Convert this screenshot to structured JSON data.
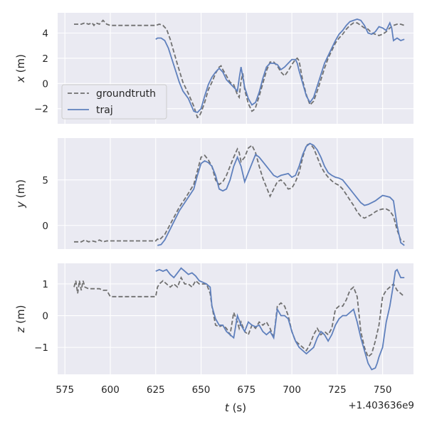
{
  "chart_data": [
    {
      "type": "line",
      "ylabel_var": "x",
      "ylabel_unit": " (m)",
      "xlim": [
        571,
        767
      ],
      "ylim": [
        -3.2,
        5.6
      ],
      "yticks": [
        -2,
        0,
        2,
        4
      ],
      "ytick_labels": [
        "−2",
        "0",
        "2",
        "4"
      ],
      "xticks": [
        575,
        600,
        625,
        650,
        675,
        700,
        725,
        750
      ],
      "legend": {
        "placement": "center-left",
        "entries": [
          "groundtruth",
          "traj"
        ]
      },
      "series": [
        {
          "name": "groundtruth",
          "style": "dashed",
          "color": "#707070",
          "x": [
            580,
            584,
            586,
            588,
            590,
            591,
            592,
            594,
            596,
            598,
            600,
            610,
            620,
            625,
            627,
            629,
            631,
            633,
            635,
            637,
            640,
            643,
            646,
            648,
            649,
            650,
            652,
            654,
            656,
            658,
            660,
            661,
            662,
            664,
            666,
            668,
            670,
            671,
            672,
            673,
            674,
            676,
            678,
            679,
            680,
            682,
            684,
            686,
            688,
            690,
            692,
            694,
            696,
            698,
            700,
            702,
            703,
            704,
            706,
            708,
            710,
            712,
            714,
            716,
            718,
            720,
            722,
            724,
            726,
            728,
            730,
            732,
            734,
            736,
            738,
            740,
            742,
            744,
            746,
            748,
            750,
            752,
            754,
            756,
            758,
            760,
            762
          ],
          "values": [
            4.7,
            4.7,
            4.8,
            4.7,
            4.8,
            4.6,
            4.8,
            4.7,
            5.0,
            4.7,
            4.6,
            4.6,
            4.6,
            4.6,
            4.7,
            4.6,
            4.3,
            3.5,
            2.5,
            1.5,
            0.1,
            -0.8,
            -1.8,
            -2.7,
            -2.6,
            -2.3,
            -1.5,
            -0.5,
            0.1,
            0.8,
            1.3,
            1.4,
            1.1,
            0.6,
            0.1,
            -0.1,
            -0.9,
            -1.1,
            0.2,
            0.8,
            -0.5,
            -1.6,
            -2.2,
            -2.1,
            -1.9,
            -1.0,
            0.0,
            1.0,
            1.7,
            1.7,
            1.4,
            0.9,
            0.6,
            1.0,
            1.5,
            1.9,
            2.0,
            1.8,
            0.2,
            -0.9,
            -1.7,
            -1.4,
            -0.6,
            0.3,
            1.2,
            2.0,
            2.6,
            3.2,
            3.6,
            3.9,
            4.3,
            4.6,
            4.8,
            4.8,
            4.6,
            4.4,
            4.3,
            4.0,
            3.9,
            3.8,
            3.9,
            4.1,
            4.4,
            4.6,
            4.7,
            4.7,
            4.6
          ]
        },
        {
          "name": "traj",
          "style": "solid",
          "color": "#5f80bd",
          "x": [
            625,
            626,
            628,
            630,
            632,
            634,
            636,
            638,
            640,
            643,
            646,
            648,
            650,
            652,
            654,
            656,
            658,
            660,
            662,
            664,
            666,
            668,
            670,
            671,
            672,
            673,
            674,
            676,
            678,
            680,
            682,
            684,
            686,
            688,
            690,
            692,
            694,
            696,
            698,
            700,
            702,
            703,
            704,
            706,
            708,
            710,
            712,
            714,
            716,
            718,
            720,
            722,
            724,
            726,
            728,
            730,
            732,
            734,
            736,
            738,
            740,
            742,
            744,
            746,
            748,
            750,
            752,
            754,
            755,
            756,
            758,
            760,
            762
          ],
          "values": [
            3.5,
            3.6,
            3.6,
            3.4,
            2.8,
            1.9,
            1.0,
            0.1,
            -0.6,
            -1.2,
            -2.2,
            -2.3,
            -2.0,
            -1.0,
            -0.1,
            0.5,
            0.9,
            1.2,
            0.9,
            0.3,
            0.0,
            -0.3,
            -0.6,
            0.4,
            1.3,
            0.5,
            -0.3,
            -1.2,
            -1.7,
            -1.5,
            -0.7,
            0.4,
            1.3,
            1.6,
            1.6,
            1.5,
            1.1,
            1.3,
            1.6,
            1.9,
            1.9,
            1.6,
            1.0,
            0.0,
            -1.0,
            -1.5,
            -1.1,
            -0.2,
            0.7,
            1.6,
            2.2,
            2.8,
            3.4,
            3.9,
            4.2,
            4.6,
            4.9,
            5.0,
            5.1,
            5.0,
            4.6,
            4.0,
            3.9,
            4.1,
            4.5,
            4.4,
            4.2,
            4.8,
            4.4,
            3.4,
            3.6,
            3.4,
            3.5
          ]
        }
      ]
    },
    {
      "type": "line",
      "ylabel_var": "y",
      "ylabel_unit": " (m)",
      "xlim": [
        571,
        767
      ],
      "ylim": [
        -2.6,
        9.6
      ],
      "yticks": [
        0,
        5
      ],
      "ytick_labels": [
        "0",
        "5"
      ],
      "xticks": [
        575,
        600,
        625,
        650,
        675,
        700,
        725,
        750
      ],
      "series": [
        {
          "name": "groundtruth",
          "style": "dashed",
          "color": "#707070",
          "x": [
            580,
            584,
            586,
            588,
            590,
            592,
            594,
            596,
            598,
            600,
            610,
            620,
            625,
            626,
            627,
            630,
            634,
            638,
            642,
            646,
            648,
            650,
            652,
            654,
            656,
            658,
            660,
            662,
            664,
            666,
            668,
            670,
            671,
            672,
            674,
            676,
            678,
            680,
            682,
            684,
            686,
            688,
            690,
            692,
            694,
            696,
            698,
            700,
            702,
            704,
            706,
            708,
            710,
            712,
            714,
            716,
            718,
            720,
            722,
            724,
            726,
            728,
            730,
            732,
            734,
            736,
            738,
            740,
            742,
            744,
            746,
            748,
            750,
            752,
            754,
            756,
            758,
            760,
            762
          ],
          "values": [
            -1.8,
            -1.8,
            -1.6,
            -1.8,
            -1.7,
            -1.8,
            -1.6,
            -1.8,
            -1.7,
            -1.7,
            -1.7,
            -1.7,
            -1.7,
            -1.5,
            -1.6,
            -1.0,
            0.5,
            2.0,
            3.2,
            4.5,
            6.0,
            7.5,
            7.7,
            7.2,
            6.5,
            5.0,
            4.5,
            4.8,
            5.5,
            6.5,
            7.5,
            8.4,
            8.0,
            7.0,
            7.5,
            8.5,
            8.8,
            8.0,
            6.5,
            5.2,
            4.2,
            3.2,
            4.0,
            4.8,
            5.0,
            4.6,
            4.0,
            4.1,
            4.8,
            5.8,
            7.5,
            8.8,
            9.0,
            8.5,
            7.5,
            6.5,
            5.8,
            5.3,
            4.9,
            4.6,
            4.4,
            4.0,
            3.4,
            2.8,
            2.2,
            1.5,
            1.0,
            0.8,
            1.0,
            1.2,
            1.5,
            1.7,
            1.8,
            1.8,
            1.6,
            1.0,
            -0.5,
            -1.6,
            -1.8
          ]
        },
        {
          "name": "traj",
          "style": "solid",
          "color": "#5f80bd",
          "x": [
            626,
            628,
            630,
            634,
            638,
            642,
            646,
            648,
            650,
            652,
            654,
            656,
            658,
            660,
            662,
            664,
            666,
            668,
            670,
            672,
            674,
            676,
            678,
            680,
            682,
            684,
            686,
            688,
            690,
            692,
            694,
            696,
            698,
            700,
            702,
            704,
            706,
            708,
            710,
            712,
            714,
            716,
            718,
            720,
            722,
            724,
            726,
            728,
            730,
            732,
            734,
            736,
            738,
            740,
            742,
            744,
            746,
            748,
            750,
            752,
            754,
            756,
            758,
            760,
            762
          ],
          "values": [
            -2.2,
            -2.1,
            -1.6,
            0.0,
            1.6,
            2.8,
            4.0,
            5.5,
            6.8,
            7.1,
            6.9,
            6.5,
            5.5,
            4.0,
            3.8,
            4.0,
            5.0,
            6.5,
            7.5,
            6.5,
            4.8,
            5.8,
            6.8,
            7.8,
            7.5,
            7.0,
            6.5,
            6.0,
            5.5,
            5.3,
            5.5,
            5.6,
            5.7,
            5.3,
            5.5,
            6.5,
            7.8,
            8.7,
            9.0,
            8.8,
            8.3,
            7.5,
            6.5,
            5.8,
            5.5,
            5.3,
            5.2,
            5.0,
            4.5,
            4.0,
            3.5,
            3.0,
            2.5,
            2.2,
            2.3,
            2.5,
            2.7,
            3.0,
            3.3,
            3.2,
            3.1,
            2.7,
            0.0,
            -1.9,
            -2.2
          ]
        }
      ]
    },
    {
      "type": "line",
      "ylabel_var": "z",
      "ylabel_unit": " (m)",
      "xlim": [
        571,
        767
      ],
      "ylim": [
        -1.85,
        1.65
      ],
      "yticks": [
        -1,
        0,
        1
      ],
      "ytick_labels": [
        "−1",
        "0",
        "1"
      ],
      "xticks": [
        575,
        600,
        625,
        650,
        675,
        700,
        725,
        750
      ],
      "xtick_labels": [
        "575",
        "600",
        "625",
        "650",
        "675",
        "700",
        "725",
        "750"
      ],
      "xlabel_var": "t",
      "xlabel_unit": " (s)",
      "offset_label": "+1.403636e9",
      "series": [
        {
          "name": "groundtruth",
          "style": "dashed",
          "color": "#707070",
          "x": [
            580,
            581,
            582,
            583,
            584,
            585,
            586,
            588,
            590,
            592,
            594,
            596,
            598,
            600,
            610,
            620,
            625,
            626,
            627,
            629,
            631,
            633,
            635,
            637,
            639,
            641,
            643,
            645,
            647,
            649,
            651,
            653,
            655,
            656,
            658,
            660,
            662,
            664,
            666,
            668,
            670,
            671,
            672,
            674,
            676,
            678,
            680,
            682,
            684,
            686,
            688,
            690,
            692,
            694,
            696,
            698,
            700,
            702,
            704,
            706,
            708,
            710,
            712,
            714,
            716,
            718,
            720,
            722,
            724,
            726,
            728,
            730,
            732,
            734,
            736,
            738,
            740,
            742,
            744,
            746,
            748,
            750,
            752,
            754,
            756,
            758,
            760,
            762
          ],
          "values": [
            0.9,
            1.1,
            0.7,
            1.1,
            0.8,
            1.1,
            0.9,
            0.85,
            0.85,
            0.85,
            0.85,
            0.8,
            0.8,
            0.6,
            0.6,
            0.6,
            0.6,
            0.9,
            1.0,
            1.1,
            1.0,
            0.9,
            1.0,
            0.9,
            1.2,
            1.0,
            1.0,
            0.9,
            1.1,
            1.0,
            1.0,
            1.0,
            0.7,
            0.3,
            -0.3,
            -0.35,
            -0.3,
            -0.4,
            -0.6,
            0.1,
            -0.2,
            -0.4,
            -0.2,
            -0.5,
            -0.6,
            -0.3,
            -0.4,
            -0.2,
            -0.3,
            -0.2,
            -0.4,
            -0.7,
            0.3,
            0.4,
            0.3,
            0.0,
            -0.5,
            -0.8,
            -0.9,
            -1.0,
            -1.1,
            -0.9,
            -0.6,
            -0.4,
            -0.6,
            -0.5,
            -0.6,
            -0.4,
            0.2,
            0.3,
            0.3,
            0.5,
            0.8,
            0.9,
            0.6,
            -0.5,
            -1.0,
            -1.3,
            -1.2,
            -0.8,
            -0.3,
            0.6,
            0.8,
            0.9,
            1.0,
            0.8,
            0.7,
            0.6
          ]
        },
        {
          "name": "traj",
          "style": "solid",
          "color": "#5f80bd",
          "x": [
            625,
            627,
            629,
            631,
            633,
            635,
            637,
            639,
            641,
            643,
            645,
            647,
            649,
            651,
            653,
            655,
            656,
            658,
            660,
            662,
            664,
            666,
            668,
            670,
            672,
            674,
            676,
            678,
            680,
            682,
            684,
            686,
            688,
            690,
            692,
            694,
            696,
            698,
            700,
            702,
            704,
            706,
            708,
            710,
            712,
            714,
            716,
            718,
            720,
            722,
            724,
            726,
            728,
            730,
            732,
            734,
            736,
            738,
            740,
            742,
            744,
            746,
            747,
            748,
            750,
            752,
            754,
            756,
            757,
            758,
            760,
            762
          ],
          "values": [
            1.4,
            1.45,
            1.4,
            1.45,
            1.3,
            1.2,
            1.35,
            1.5,
            1.4,
            1.3,
            1.35,
            1.25,
            1.1,
            1.05,
            1.0,
            0.9,
            0.3,
            -0.1,
            -0.3,
            -0.3,
            -0.5,
            -0.6,
            -0.7,
            0.0,
            -0.3,
            -0.5,
            -0.2,
            -0.3,
            -0.35,
            -0.3,
            -0.5,
            -0.6,
            -0.5,
            -0.7,
            0.2,
            0.0,
            0.0,
            -0.1,
            -0.5,
            -0.8,
            -1.0,
            -1.1,
            -1.2,
            -1.1,
            -1.0,
            -0.7,
            -0.5,
            -0.6,
            -0.8,
            -0.6,
            -0.3,
            -0.1,
            0.0,
            0.0,
            0.1,
            0.2,
            -0.2,
            -0.7,
            -1.1,
            -1.5,
            -1.7,
            -1.65,
            -1.5,
            -1.3,
            -1.0,
            -0.2,
            0.3,
            1.0,
            1.4,
            1.45,
            1.2,
            1.2
          ]
        }
      ]
    }
  ]
}
